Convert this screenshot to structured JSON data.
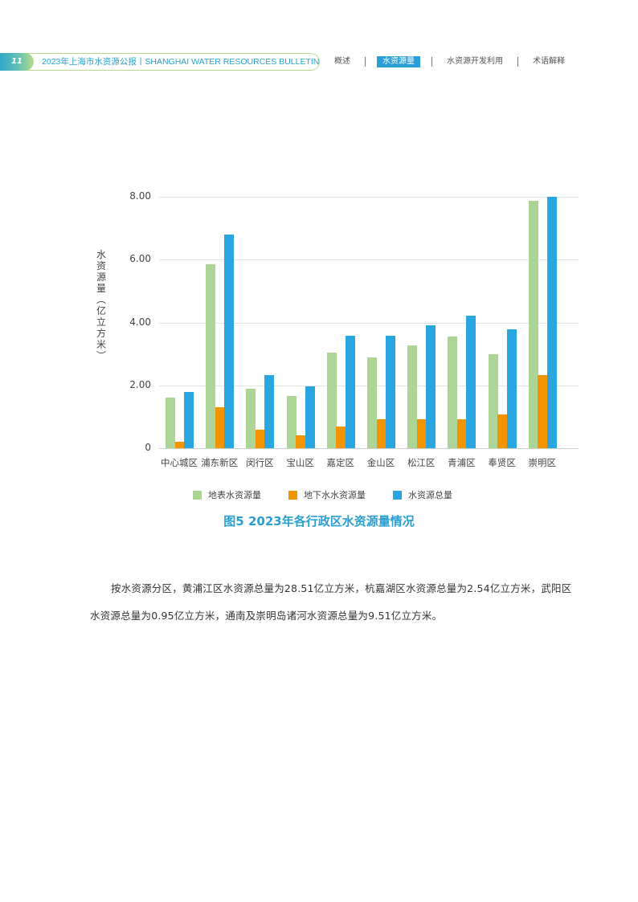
{
  "header": {
    "page_number": "11",
    "title": "2023年上海市水资源公报丨SHANGHAI WATER RESOURCES BULLETIN",
    "nav": [
      {
        "label": "概述",
        "active": false
      },
      {
        "label": "水资源量",
        "active": true
      },
      {
        "label": "水资源开发利用",
        "active": false
      },
      {
        "label": "术语解释",
        "active": false
      }
    ]
  },
  "colors": {
    "surface": "#aed598",
    "ground": "#f29400",
    "total": "#29a6e0",
    "accent": "#2a9fcf"
  },
  "chart_data": {
    "type": "bar",
    "title": "图5 2023年各行政区水资源量情况",
    "xlabel": "",
    "ylabel": "水资源量（亿立方米）",
    "ylim": [
      0,
      8
    ],
    "yticks": [
      "0",
      "2.00",
      "4.00",
      "6.00",
      "8.00"
    ],
    "grid": true,
    "legend_position": "bottom",
    "categories": [
      "中心城区",
      "浦东新区",
      "闵行区",
      "宝山区",
      "嘉定区",
      "金山区",
      "松江区",
      "青浦区",
      "奉贤区",
      "崇明区"
    ],
    "series": [
      {
        "name": "地表水资源量",
        "color": "#aed598",
        "values": [
          1.61,
          5.86,
          1.89,
          1.66,
          3.04,
          2.89,
          3.27,
          3.56,
          2.99,
          7.87
        ]
      },
      {
        "name": "地下水水资源量",
        "color": "#f29400",
        "values": [
          0.21,
          1.31,
          0.59,
          0.41,
          0.69,
          0.92,
          0.92,
          0.92,
          1.07,
          2.33
        ]
      },
      {
        "name": "水资源总量",
        "color": "#29a6e0",
        "values": [
          1.79,
          6.8,
          2.33,
          1.97,
          3.58,
          3.58,
          3.91,
          4.22,
          3.78,
          8.0
        ]
      }
    ]
  },
  "chart": {
    "ylabel_chars": [
      "水",
      "资",
      "源",
      "量",
      "︵",
      "亿",
      "立",
      "方",
      "米",
      "︶"
    ],
    "legend": [
      "地表水资源量",
      "地下水水资源量",
      "水资源总量"
    ],
    "caption": "图5  2023年各行政区水资源量情况"
  },
  "body": {
    "paragraph": "按水资源分区，黄浦江区水资源总量为28.51亿立方米，杭嘉湖区水资源总量为2.54亿立方米，武阳区水资源总量为0.95亿立方米，通南及崇明岛诸河水资源总量为9.51亿立方米。"
  }
}
